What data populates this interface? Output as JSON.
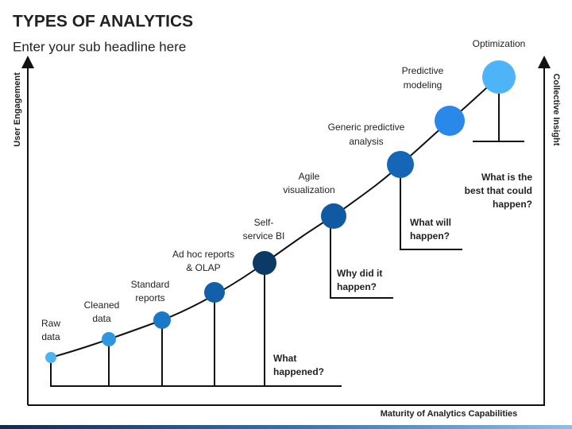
{
  "header": {
    "title": "TYPES OF ANALYTICS",
    "subtitle": "Enter your sub headline here"
  },
  "axes": {
    "left": "User Engagement",
    "right": "Collective Insight",
    "bottom": "Maturity of Analytics Capabilities"
  },
  "nodes": [
    {
      "label": [
        "Raw",
        "data"
      ]
    },
    {
      "label": [
        "Cleaned",
        "data"
      ]
    },
    {
      "label": [
        "Standard",
        "reports"
      ]
    },
    {
      "label": [
        "Ad hoc reports",
        "& OLAP"
      ]
    },
    {
      "label": [
        "Self-",
        "service BI"
      ]
    },
    {
      "label": [
        "Agile",
        "visualization"
      ]
    },
    {
      "label": [
        "Generic predictive",
        "analysis"
      ]
    },
    {
      "label": [
        "Predictive",
        "modeling"
      ]
    },
    {
      "label": [
        "Optimization"
      ]
    }
  ],
  "questions": [
    [
      "What",
      "happened?"
    ],
    [
      "Why did it",
      "happen?"
    ],
    [
      "What will",
      "happen?"
    ],
    [
      "What is the",
      "best that could",
      "happen?"
    ]
  ]
}
